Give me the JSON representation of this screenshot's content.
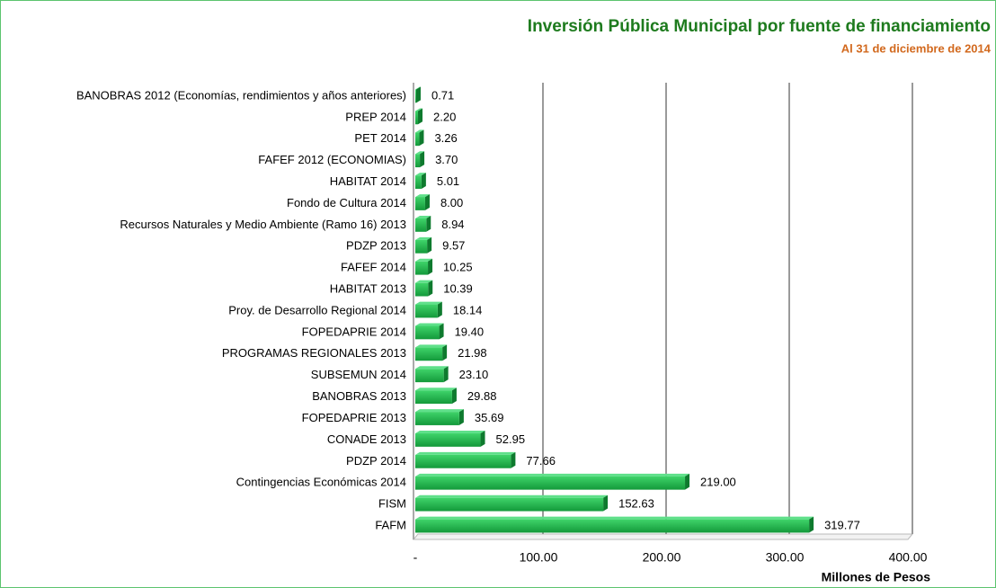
{
  "chart_data": {
    "type": "hbar",
    "title": "Inversión Pública Municipal por fuente de financiamiento",
    "subtitle": "Al 31 de diciembre de 2014",
    "x_label": "Millones de Pesos",
    "categories": [
      "BANOBRAS 2012 (Economías, rendimientos y años anteriores)",
      "PREP 2014",
      "PET 2014",
      "FAFEF 2012 (ECONOMIAS)",
      "HABITAT 2014",
      "Fondo de Cultura 2014",
      "Recursos Naturales y Medio Ambiente (Ramo 16) 2013",
      "PDZP 2013",
      "FAFEF 2014",
      "HABITAT 2013",
      "Proy. de Desarrollo Regional 2014",
      "FOPEDAPRIE 2014",
      "PROGRAMAS REGIONALES 2013",
      "SUBSEMUN 2014",
      "BANOBRAS 2013",
      "FOPEDAPRIE 2013",
      "CONADE 2013",
      "PDZP 2014",
      "Contingencias Económicas 2014",
      "FISM",
      "FAFM"
    ],
    "values": [
      0.71,
      2.2,
      3.26,
      3.7,
      5.01,
      8.0,
      8.94,
      9.57,
      10.25,
      10.39,
      18.14,
      19.4,
      21.98,
      23.1,
      29.88,
      35.69,
      52.95,
      77.66,
      219.0,
      152.63,
      319.77
    ],
    "value_labels": [
      "0.71",
      "2.20",
      "3.26",
      "3.70",
      "5.01",
      "8.00",
      "8.94",
      "9.57",
      "10.25",
      "10.39",
      "18.14",
      "19.40",
      "21.98",
      "23.10",
      "29.88",
      "35.69",
      "52.95",
      "77.66",
      "219.00",
      "152.63",
      "319.77"
    ],
    "color": "#1fb34a",
    "xlim": [
      0,
      400
    ],
    "xticks": [
      {
        "value": 0,
        "label": "-"
      },
      {
        "value": 100,
        "label": "100.00"
      },
      {
        "value": 200,
        "label": "200.00"
      },
      {
        "value": 300,
        "label": "300.00"
      },
      {
        "value": 400,
        "label": "400.00"
      }
    ],
    "grid": true
  }
}
